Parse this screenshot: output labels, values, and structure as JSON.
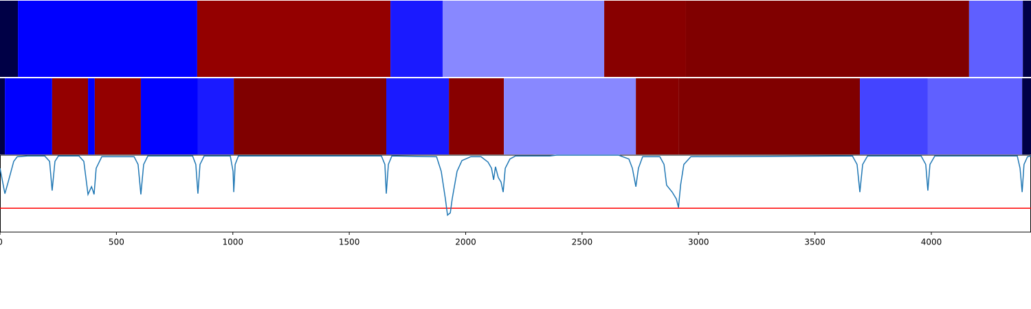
{
  "chart_data": {
    "type": "segmentation",
    "xlim": [
      0,
      4428
    ],
    "xticks": [
      0,
      500,
      1000,
      1500,
      2000,
      2500,
      3000,
      3500,
      4000
    ],
    "rows": [
      {
        "segments": [
          {
            "start": 0,
            "end": 77,
            "color": "#000046"
          },
          {
            "start": 77,
            "end": 847,
            "color": "#0000ff"
          },
          {
            "start": 847,
            "end": 1677,
            "color": "#940000"
          },
          {
            "start": 1677,
            "end": 1901,
            "color": "#1a1aff"
          },
          {
            "start": 1901,
            "end": 2595,
            "color": "#8888ff"
          },
          {
            "start": 2595,
            "end": 2946,
            "color": "#880000"
          },
          {
            "start": 2946,
            "end": 4162,
            "color": "#800000"
          },
          {
            "start": 4162,
            "end": 4393,
            "color": "#5f5fff"
          },
          {
            "start": 4393,
            "end": 4428,
            "color": "#000046"
          }
        ]
      },
      {
        "segments": [
          {
            "start": 0,
            "end": 21,
            "color": "#000046"
          },
          {
            "start": 21,
            "end": 224,
            "color": "#0000ff"
          },
          {
            "start": 224,
            "end": 378,
            "color": "#940000"
          },
          {
            "start": 378,
            "end": 407,
            "color": "#0000ff"
          },
          {
            "start": 407,
            "end": 605,
            "color": "#940000"
          },
          {
            "start": 605,
            "end": 850,
            "color": "#0000ff"
          },
          {
            "start": 850,
            "end": 1004,
            "color": "#1a1aff"
          },
          {
            "start": 1004,
            "end": 1659,
            "color": "#800000"
          },
          {
            "start": 1659,
            "end": 1928,
            "color": "#1a1aff"
          },
          {
            "start": 1928,
            "end": 2164,
            "color": "#880000"
          },
          {
            "start": 2164,
            "end": 2731,
            "color": "#8888ff"
          },
          {
            "start": 2731,
            "end": 2914,
            "color": "#880000"
          },
          {
            "start": 2914,
            "end": 3693,
            "color": "#800000"
          },
          {
            "start": 3693,
            "end": 3985,
            "color": "#4444ff"
          },
          {
            "start": 3985,
            "end": 4390,
            "color": "#6060ff"
          },
          {
            "start": 4390,
            "end": 4428,
            "color": "#000046"
          }
        ]
      }
    ],
    "ylim": [
      0,
      1
    ],
    "line_color": "#1f77b4",
    "threshold": 0.31,
    "threshold_color": "#ff0000",
    "x": [
      0,
      21,
      35,
      59,
      74,
      118,
      192,
      213,
      224,
      236,
      251,
      339,
      360,
      378,
      393,
      399,
      404,
      413,
      437,
      576,
      593,
      605,
      617,
      635,
      827,
      841,
      850,
      859,
      877,
      989,
      1001,
      1004,
      1010,
      1024,
      1638,
      1653,
      1659,
      1668,
      1683,
      1875,
      1895,
      1913,
      1922,
      1934,
      1942,
      1963,
      1984,
      2022,
      2066,
      2096,
      2111,
      2120,
      2128,
      2140,
      2152,
      2161,
      2170,
      2190,
      2214,
      2362,
      2391,
      2657,
      2701,
      2716,
      2731,
      2742,
      2760,
      2834,
      2852,
      2863,
      2887,
      2905,
      2914,
      2923,
      2937,
      2967,
      3661,
      3681,
      3693,
      3705,
      3726,
      3956,
      3976,
      3985,
      3994,
      4015,
      4369,
      4381,
      4390,
      4398,
      4413,
      4428
    ],
    "values": [
      0.83,
      0.5,
      0.65,
      0.92,
      0.98,
      0.99,
      0.99,
      0.92,
      0.54,
      0.92,
      0.99,
      0.99,
      0.92,
      0.49,
      0.59,
      0.54,
      0.49,
      0.83,
      0.98,
      0.98,
      0.88,
      0.49,
      0.88,
      0.99,
      0.99,
      0.88,
      0.5,
      0.88,
      0.99,
      0.99,
      0.79,
      0.52,
      0.88,
      0.99,
      0.99,
      0.88,
      0.5,
      0.88,
      0.99,
      0.98,
      0.79,
      0.43,
      0.22,
      0.25,
      0.43,
      0.79,
      0.93,
      0.98,
      0.98,
      0.91,
      0.83,
      0.68,
      0.85,
      0.71,
      0.65,
      0.52,
      0.83,
      0.95,
      0.99,
      0.99,
      1.0,
      1.0,
      0.95,
      0.83,
      0.59,
      0.83,
      0.98,
      0.98,
      0.88,
      0.61,
      0.52,
      0.43,
      0.32,
      0.61,
      0.88,
      0.98,
      0.99,
      0.88,
      0.52,
      0.88,
      0.99,
      0.99,
      0.88,
      0.54,
      0.88,
      0.99,
      0.99,
      0.83,
      0.52,
      0.88,
      0.98,
      0.99
    ]
  }
}
